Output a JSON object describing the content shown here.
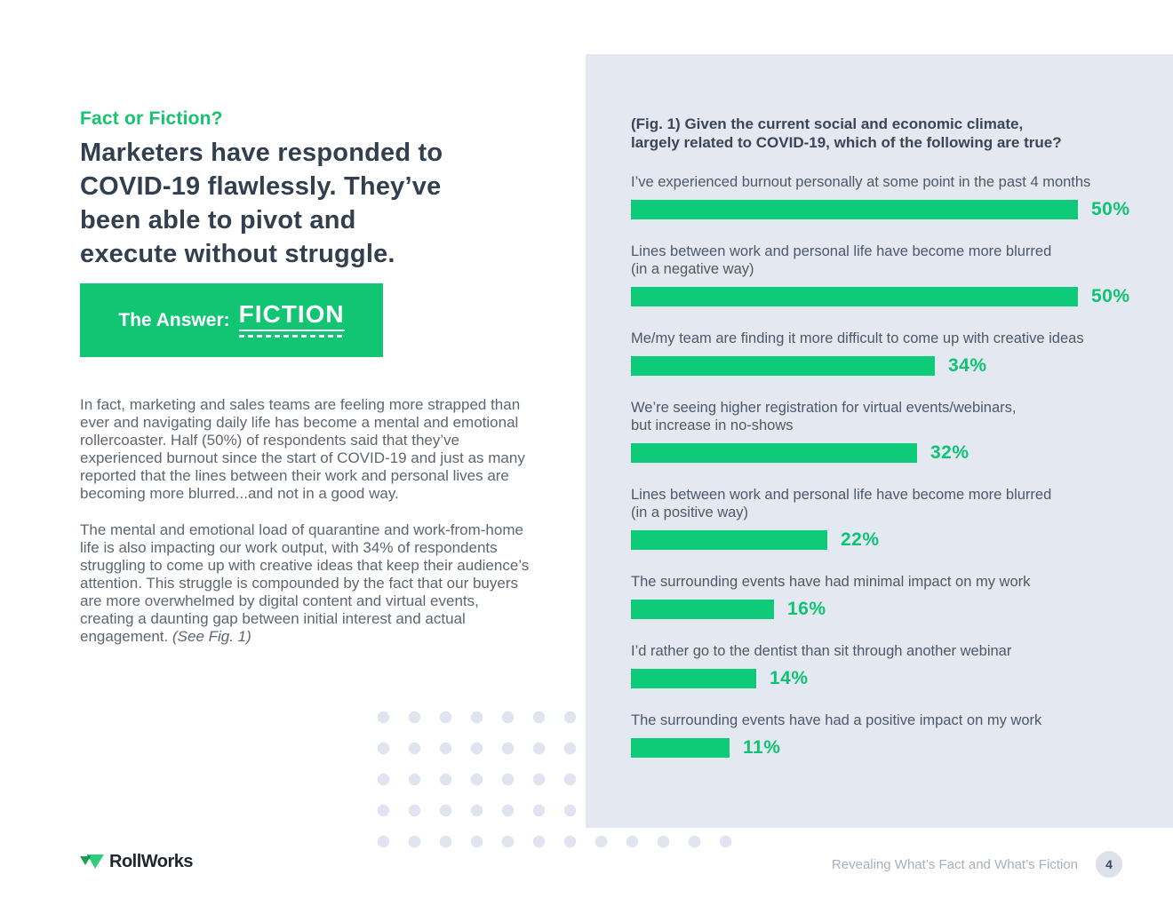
{
  "left": {
    "eyebrow": "Fact or Fiction?",
    "headline": "Marketers have responded to\nCOVID-19 flawlessly. They’ve\nbeen able to pivot and\nexecute without struggle.",
    "answer_prefix": "The Answer:",
    "answer_value": "FICTION",
    "paragraph1": "In fact, marketing and sales teams are feeling more strapped than ever and navigating daily life has become a mental and emotional rollercoaster. Half (50%) of respondents said that they’ve experienced burnout since the start of COVID-19 and just as many reported that the lines between their work and personal lives are becoming more blurred...and not in a good way.",
    "paragraph2": "The mental and emotional load of quarantine and work-from-home life is also impacting our work output, with 34% of respondents struggling to come up with creative ideas that keep their audience’s attention. This struggle is compounded by the fact that our buyers are more overwhelmed by digital content and virtual events, creating a daunting gap between initial interest and actual engagement.",
    "paragraph2_note": "(See Fig. 1)"
  },
  "chart_data": {
    "type": "bar",
    "orientation": "horizontal",
    "title": "(Fig. 1) Given the current social and economic climate,\nlargely related to COVID-19, which of the following are true?",
    "categories": [
      "I’ve experienced burnout personally at some point in the past 4 months",
      "Lines between work and personal life have become more blurred\n(in a negative way)",
      "Me/my team are finding it more difficult to come up with creative ideas",
      "We’re seeing higher registration for virtual events/webinars,\nbut increase in no-shows",
      "Lines between work and personal life have become more blurred\n(in a positive way)",
      "The surrounding events have had minimal impact on my work",
      "I’d rather go to the dentist than sit through another webinar",
      "The surrounding events have had a positive impact on my work"
    ],
    "values": [
      50,
      50,
      34,
      32,
      22,
      16,
      14,
      11
    ],
    "unit": "%",
    "xlim": [
      0,
      50
    ],
    "bar_color": "#0ECB79",
    "value_label_color": "#0EC473",
    "panel_background": "#E3E8F1",
    "grid": false,
    "legend": false
  },
  "footer": {
    "brand": "RollWorks",
    "caption": "Revealing What’s Fact and What’s Fiction",
    "page_number": "4"
  },
  "colors": {
    "accent_green": "#12C573",
    "headline_text": "#323F4F",
    "body_text": "#5D6671",
    "label_text": "#4D5968",
    "footer_text": "#A7B1C0",
    "dots": "#DFE4EF",
    "page_badge_background": "#DCE1EC"
  }
}
